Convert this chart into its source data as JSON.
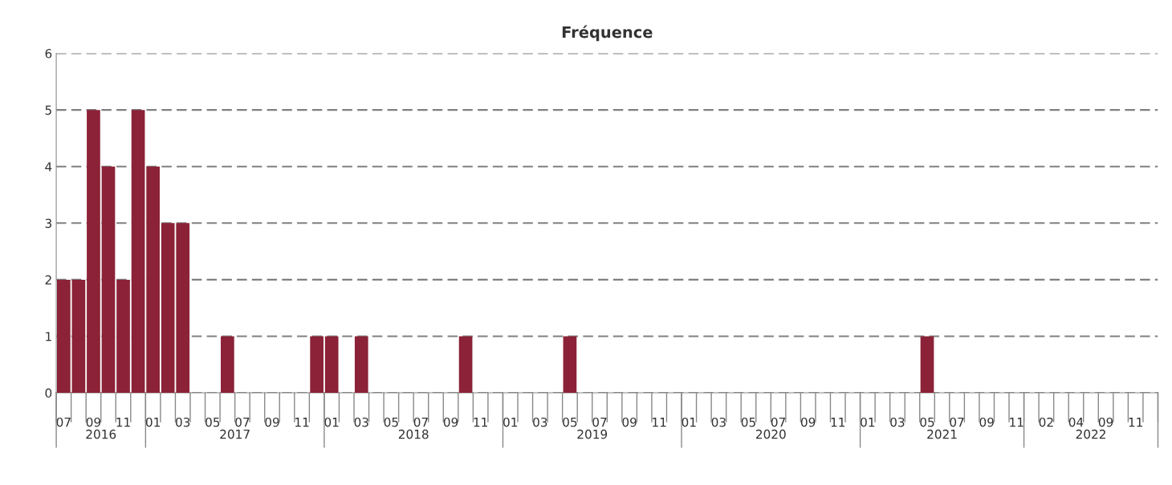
{
  "chart_data": {
    "type": "bar",
    "title": "Fréquence",
    "categories": [
      "07",
      null,
      "09",
      null,
      "11",
      null,
      "01",
      null,
      "03",
      null,
      "05",
      null,
      "07",
      null,
      "09",
      null,
      "11",
      null,
      "01",
      null,
      "03",
      null,
      "05",
      null,
      "07",
      null,
      "09",
      null,
      "11",
      null,
      "01",
      null,
      "03",
      null,
      "05",
      null,
      "07",
      null,
      "09",
      null,
      "11",
      null,
      "01",
      null,
      "03",
      null,
      "05",
      null,
      "07",
      null,
      "09",
      null,
      "11",
      null,
      "01",
      null,
      "03",
      null,
      "05",
      null,
      "07",
      null,
      "09",
      null,
      "11",
      null,
      "02",
      null,
      "04",
      null,
      "09",
      null,
      "11",
      null
    ],
    "values": [
      2,
      2,
      5,
      4,
      2,
      5,
      4,
      3,
      3,
      0,
      0,
      1,
      0,
      0,
      0,
      0,
      0,
      1,
      1,
      0,
      1,
      0,
      0,
      0,
      0,
      0,
      0,
      1,
      0,
      0,
      0,
      0,
      0,
      0,
      1,
      0,
      0,
      0,
      0,
      0,
      0,
      0,
      0,
      0,
      0,
      0,
      0,
      0,
      0,
      0,
      0,
      0,
      0,
      0,
      0,
      0,
      0,
      0,
      1,
      0,
      0,
      0,
      0,
      0,
      0,
      0,
      0,
      0,
      0,
      0,
      0,
      0,
      0,
      0
    ],
    "color": "#8b2237",
    "ylim": [
      0,
      6
    ],
    "yticks": [
      0,
      1,
      2,
      3,
      4,
      5,
      6
    ],
    "grid": "y",
    "annotations": [
      "2016",
      "2017",
      "2018",
      "2019",
      "2020",
      "2021",
      "2022"
    ]
  }
}
